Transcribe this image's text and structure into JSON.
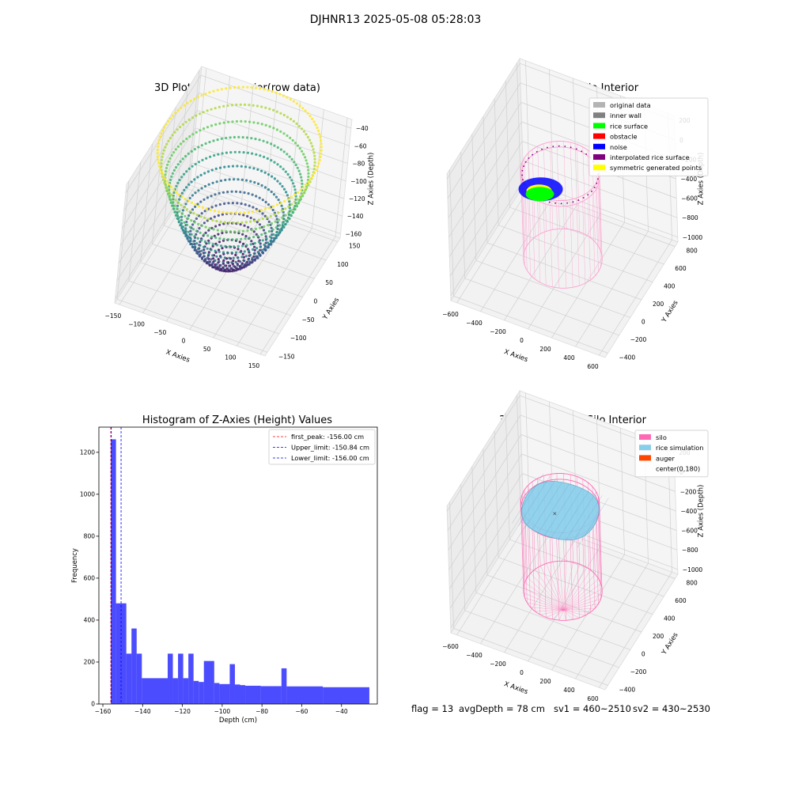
{
  "figure": {
    "suptitle": "DJHNR13 2025-05-08 05:28:03",
    "status": {
      "flag": "flag = 13",
      "avg_depth": "avgDepth = 78 cm",
      "sv1": "sv1 = 460~2510",
      "sv2": "sv2 = 430~2530"
    }
  },
  "chart_data": [
    {
      "type": "scatter",
      "title": "3D Plot of Silo Interior(row data)",
      "projection": "3d",
      "xlabel": "X Axies",
      "ylabel": "Y Axies",
      "zlabel": "Z Axies (Depth)",
      "x_ticks": [
        -150,
        -100,
        -50,
        0,
        50,
        100,
        150
      ],
      "y_ticks": [
        -150,
        -100,
        -50,
        0,
        50,
        100,
        150
      ],
      "z_ticks": [
        -40,
        -60,
        -80,
        -100,
        -120,
        -140,
        -160
      ],
      "xlim": [
        -160,
        160
      ],
      "ylim": [
        -160,
        160
      ],
      "zlim": [
        -165,
        -30
      ],
      "surface": "paraboloid bowl, rim radius 156, rim depth -28, bottom depth -156",
      "colormap": "viridis",
      "colormap_stops": [
        "#440154",
        "#3b528b",
        "#21918c",
        "#5ec962",
        "#fde725"
      ]
    },
    {
      "type": "scatter",
      "title": "3D classify of Silo Interior",
      "projection": "3d",
      "xlabel": "X Axies",
      "ylabel": "Y Axies",
      "zlabel": "Z Axies (Depth)",
      "x_ticks": [
        -600,
        -400,
        -200,
        0,
        200,
        400,
        600
      ],
      "y_ticks": [
        -400,
        -200,
        0,
        200,
        400,
        600,
        800
      ],
      "z_ticks": [
        200,
        0,
        -200,
        -400,
        -600,
        -800,
        -1000
      ],
      "xlim": [
        -650,
        650
      ],
      "ylim": [
        -450,
        850
      ],
      "zlim": [
        -1050,
        250
      ],
      "legend": [
        {
          "label": "original data",
          "color": "#b3b3b3"
        },
        {
          "label": "inner wall",
          "color": "#808080"
        },
        {
          "label": "rice surface",
          "color": "#00ff00"
        },
        {
          "label": "obstacle",
          "color": "#ff0000"
        },
        {
          "label": "noise",
          "color": "#0000ff"
        },
        {
          "label": "interpolated rice surface",
          "color": "#800080"
        },
        {
          "label": "symmetric generated points",
          "color": "#ffff00"
        }
      ],
      "legend_position": "upper right",
      "silo": {
        "radius": 300,
        "top": 0,
        "bottom": -900,
        "center": [
          0,
          180
        ],
        "color": "#ff9ed0"
      }
    },
    {
      "type": "bar",
      "title": "Histogram of Z-Axies (Height) Values",
      "xlabel": "Depth (cm)",
      "ylabel": "Frequency",
      "xlim": [
        -162,
        -22
      ],
      "ylim": [
        0,
        1320
      ],
      "x_ticks": [
        -160,
        -140,
        -120,
        -100,
        -80,
        -60,
        -40
      ],
      "y_ticks": [
        0,
        200,
        400,
        600,
        800,
        1000,
        1200
      ],
      "bar_color": "#0000ff",
      "bin_edges": [
        -156,
        -153.4,
        -148.2,
        -145.6,
        -143,
        -140.4,
        -127.4,
        -124.8,
        -122.2,
        -119.6,
        -117,
        -114.4,
        -111.8,
        -109.2,
        -104,
        -101.4,
        -96.2,
        -93.6,
        -91,
        -88.4,
        -80.6,
        -70.2,
        -67.6,
        -49.4,
        -26
      ],
      "counts": [
        1262,
        480,
        240,
        360,
        240,
        123,
        240,
        123,
        240,
        123,
        240,
        110,
        105,
        205,
        100,
        95,
        190,
        93,
        90,
        87,
        85,
        170,
        84,
        80
      ],
      "lines": [
        {
          "label": "first_peak: -156.00 cm",
          "x": -156.0,
          "color": "#ff0000"
        },
        {
          "label": "Upper_limit: -150.84 cm",
          "x": -150.84,
          "color": "#0000ff"
        },
        {
          "label": "Lower_limit: -156.00 cm",
          "x": -156.0,
          "color": "#0000ff"
        }
      ],
      "legend_position": "upper right"
    },
    {
      "type": "scatter",
      "title": "3D simulation of Silo Interior",
      "projection": "3d",
      "xlabel": "X Axies",
      "ylabel": "Y Axies",
      "zlabel": "Z Axies (Depth)",
      "x_ticks": [
        -600,
        -400,
        -200,
        0,
        200,
        400,
        600
      ],
      "y_ticks": [
        -400,
        -200,
        0,
        200,
        400,
        600,
        800
      ],
      "z_ticks": [
        200,
        0,
        -200,
        -400,
        -600,
        -800,
        -1000
      ],
      "xlim": [
        -650,
        650
      ],
      "ylim": [
        -450,
        850
      ],
      "zlim": [
        -1050,
        250
      ],
      "legend": [
        {
          "label": "silo",
          "color": "#ff69b4"
        },
        {
          "label": "rice simulation",
          "color": "#87ceeb"
        },
        {
          "label": "auger",
          "color": "#ff4500"
        },
        {
          "label": "center(0,180)",
          "color": "none"
        }
      ],
      "legend_position": "upper right",
      "silo": {
        "radius": 300,
        "top": 0,
        "bottom": -900,
        "center": [
          0,
          180
        ],
        "color": "#ff69b4"
      },
      "rice_surface_depth": -78
    }
  ]
}
